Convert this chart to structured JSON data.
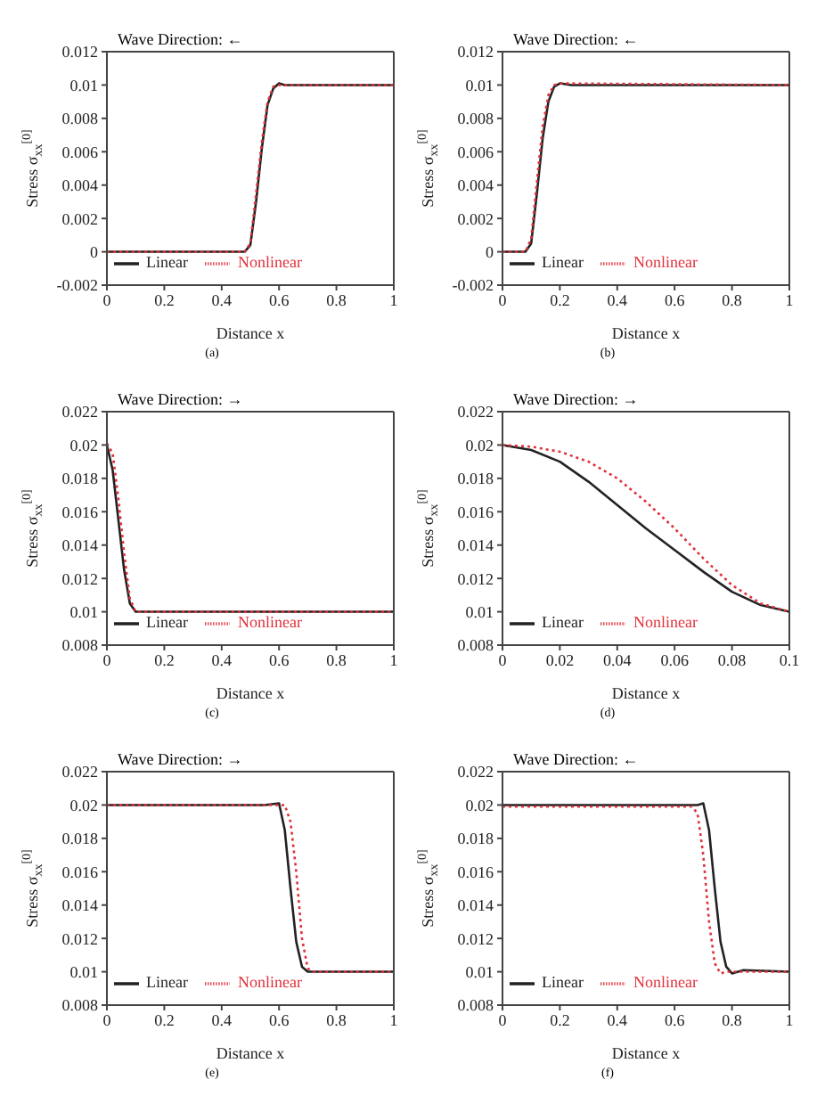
{
  "chart_data": [
    {
      "type": "line",
      "xlabel": "Distance x",
      "ylabel": "Stress σ$_{xx}$$^{[0]}$",
      "annotations": [
        "Wave Direction: ←",
        "(a)"
      ],
      "xlim": [
        0,
        1
      ],
      "xticks": [
        0,
        0.2,
        0.4,
        0.6,
        0.8,
        1
      ],
      "ylim": [
        -0.002,
        0.012
      ],
      "yticks": [
        -0.002,
        0,
        0.002,
        0.004,
        0.006,
        0.008,
        0.01,
        0.012
      ],
      "legend": "bottom",
      "series": [
        {
          "name": "Linear",
          "color": "#222222",
          "line_style": "solid",
          "x": [
            0,
            0.48,
            0.5,
            0.52,
            0.54,
            0.56,
            0.58,
            0.6,
            0.62,
            1
          ],
          "values": [
            0,
            0,
            0.0004,
            0.003,
            0.0062,
            0.0088,
            0.0098,
            0.0101,
            0.01,
            0.01
          ]
        },
        {
          "name": "Nonlinear",
          "color": "#e0303a",
          "line_style": "dotted",
          "x": [
            0,
            0.48,
            0.5,
            0.52,
            0.54,
            0.56,
            0.58,
            0.6,
            1
          ],
          "values": [
            0,
            0,
            0.0005,
            0.0035,
            0.0066,
            0.009,
            0.0099,
            0.01,
            0.01
          ]
        }
      ]
    },
    {
      "type": "line",
      "xlabel": "Distance x",
      "ylabel": "Stress σ$_{xx}$$^{[0]}$",
      "annotations": [
        "Wave Direction: ←",
        "(b)"
      ],
      "xlim": [
        0,
        1
      ],
      "xticks": [
        0,
        0.2,
        0.4,
        0.6,
        0.8,
        1
      ],
      "ylim": [
        -0.002,
        0.012
      ],
      "yticks": [
        -0.002,
        0,
        0.002,
        0.004,
        0.006,
        0.008,
        0.01,
        0.012
      ],
      "legend": "bottom",
      "series": [
        {
          "name": "Linear",
          "color": "#222222",
          "line_style": "solid",
          "x": [
            0,
            0.08,
            0.1,
            0.12,
            0.14,
            0.16,
            0.18,
            0.2,
            0.24,
            1
          ],
          "values": [
            0,
            0,
            0.0005,
            0.0035,
            0.0068,
            0.009,
            0.0099,
            0.0101,
            0.01,
            0.01
          ]
        },
        {
          "name": "Nonlinear",
          "color": "#e0303a",
          "line_style": "dotted",
          "x": [
            0,
            0.08,
            0.1,
            0.12,
            0.14,
            0.16,
            0.18,
            0.2,
            1
          ],
          "values": [
            0,
            0,
            0.0008,
            0.0042,
            0.0075,
            0.0094,
            0.01,
            0.0101,
            0.01
          ]
        }
      ]
    },
    {
      "type": "line",
      "xlabel": "Distance x",
      "ylabel": "Stress σ$_{xx}$$^{[0]}$",
      "annotations": [
        "Wave Direction: →",
        "(c)"
      ],
      "xlim": [
        0,
        1
      ],
      "xticks": [
        0,
        0.2,
        0.4,
        0.6,
        0.8,
        1
      ],
      "ylim": [
        0.008,
        0.022
      ],
      "yticks": [
        0.008,
        0.01,
        0.012,
        0.014,
        0.016,
        0.018,
        0.02,
        0.022
      ],
      "legend": "bottom",
      "series": [
        {
          "name": "Linear",
          "color": "#222222",
          "line_style": "solid",
          "x": [
            0,
            0.02,
            0.04,
            0.06,
            0.08,
            0.1,
            1
          ],
          "values": [
            0.02,
            0.0185,
            0.0155,
            0.0125,
            0.0105,
            0.01,
            0.01
          ]
        },
        {
          "name": "Nonlinear",
          "color": "#e0303a",
          "line_style": "dotted",
          "x": [
            0,
            0.02,
            0.04,
            0.06,
            0.08,
            0.1,
            1
          ],
          "values": [
            0.0201,
            0.0195,
            0.0168,
            0.0135,
            0.0108,
            0.01,
            0.01
          ]
        }
      ]
    },
    {
      "type": "line",
      "xlabel": "Distance x",
      "ylabel": "Stress σ$_{xx}$$^{[0]}$",
      "annotations": [
        "Wave Direction: →",
        "(d)"
      ],
      "xlim": [
        0,
        0.1
      ],
      "xticks": [
        0,
        0.02,
        0.04,
        0.06,
        0.08,
        0.1
      ],
      "ylim": [
        0.008,
        0.022
      ],
      "yticks": [
        0.008,
        0.01,
        0.012,
        0.014,
        0.016,
        0.018,
        0.02,
        0.022
      ],
      "legend": "bottom",
      "series": [
        {
          "name": "Linear",
          "color": "#222222",
          "line_style": "solid",
          "x": [
            0,
            0.01,
            0.02,
            0.03,
            0.04,
            0.05,
            0.06,
            0.07,
            0.08,
            0.09,
            0.1
          ],
          "values": [
            0.02,
            0.0197,
            0.019,
            0.0178,
            0.0164,
            0.015,
            0.0137,
            0.0124,
            0.0112,
            0.0104,
            0.01
          ]
        },
        {
          "name": "Nonlinear",
          "color": "#e0303a",
          "line_style": "dotted",
          "x": [
            0,
            0.01,
            0.02,
            0.03,
            0.04,
            0.05,
            0.06,
            0.07,
            0.08,
            0.09,
            0.1
          ],
          "values": [
            0.02,
            0.0199,
            0.0196,
            0.019,
            0.018,
            0.0166,
            0.015,
            0.0132,
            0.0116,
            0.0105,
            0.01
          ]
        }
      ]
    },
    {
      "type": "line",
      "xlabel": "Distance x",
      "ylabel": "Stress σ$_{xx}$$^{[0]}$",
      "annotations": [
        "Wave Direction: →",
        "(e)"
      ],
      "xlim": [
        0,
        1
      ],
      "xticks": [
        0,
        0.2,
        0.4,
        0.6,
        0.8,
        1
      ],
      "ylim": [
        0.008,
        0.022
      ],
      "yticks": [
        0.008,
        0.01,
        0.012,
        0.014,
        0.016,
        0.018,
        0.02,
        0.022
      ],
      "legend": "bottom",
      "series": [
        {
          "name": "Linear",
          "color": "#222222",
          "line_style": "solid",
          "x": [
            0,
            0.55,
            0.6,
            0.62,
            0.64,
            0.66,
            0.68,
            0.7,
            1
          ],
          "values": [
            0.02,
            0.02,
            0.0201,
            0.0185,
            0.015,
            0.0118,
            0.0103,
            0.01,
            0.01
          ]
        },
        {
          "name": "Nonlinear",
          "color": "#e0303a",
          "line_style": "dotted",
          "x": [
            0,
            0.62,
            0.64,
            0.66,
            0.68,
            0.7,
            0.72,
            1
          ],
          "values": [
            0.02,
            0.02,
            0.019,
            0.016,
            0.012,
            0.0102,
            0.01,
            0.01
          ]
        }
      ]
    },
    {
      "type": "line",
      "xlabel": "Distance x",
      "ylabel": "Stress σ$_{xx}$$^{[0]}$",
      "annotations": [
        "Wave Direction: ←",
        "(f)"
      ],
      "xlim": [
        0,
        1
      ],
      "xticks": [
        0,
        0.2,
        0.4,
        0.6,
        0.8,
        1
      ],
      "ylim": [
        0.008,
        0.022
      ],
      "yticks": [
        0.008,
        0.01,
        0.012,
        0.014,
        0.016,
        0.018,
        0.02,
        0.022
      ],
      "legend": "bottom",
      "series": [
        {
          "name": "Linear",
          "color": "#222222",
          "line_style": "solid",
          "x": [
            0,
            0.68,
            0.7,
            0.72,
            0.74,
            0.76,
            0.78,
            0.8,
            0.84,
            1
          ],
          "values": [
            0.02,
            0.02,
            0.0201,
            0.0185,
            0.015,
            0.0118,
            0.0103,
            0.0099,
            0.0101,
            0.01
          ]
        },
        {
          "name": "Nonlinear",
          "color": "#e0303a",
          "line_style": "dotted",
          "x": [
            0,
            0.66,
            0.68,
            0.7,
            0.72,
            0.74,
            0.76,
            0.78,
            1
          ],
          "values": [
            0.0199,
            0.0199,
            0.0195,
            0.017,
            0.013,
            0.0105,
            0.0099,
            0.01,
            0.01
          ]
        }
      ]
    }
  ]
}
